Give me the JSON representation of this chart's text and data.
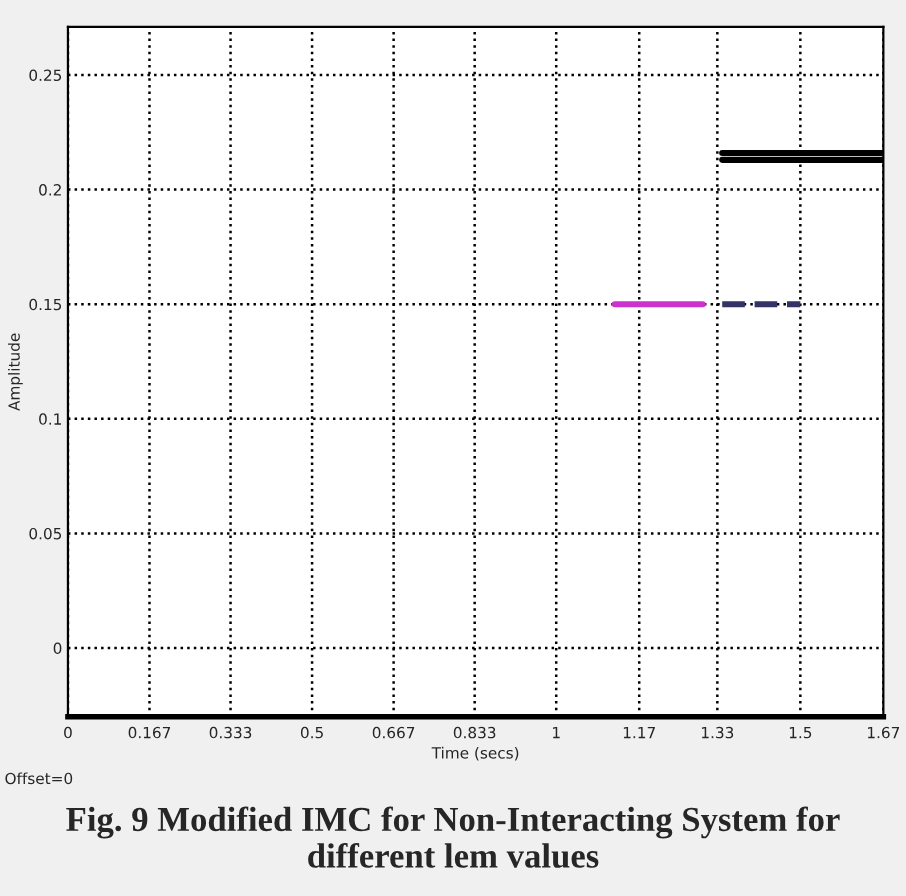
{
  "chart_data": {
    "type": "line",
    "title": "Fig. 9 Modified IMC for Non-Interacting System for different lem values",
    "xlabel": "Time (secs)",
    "ylabel": "Amplitude",
    "annotations": [
      "Offset=0"
    ],
    "series": [
      {
        "color": "#cc33cc",
        "x": [
          1.12,
          1.3
        ],
        "values": [
          0.15,
          0.15
        ]
      },
      {
        "color": "#333366",
        "x": [
          1.34,
          1.5
        ],
        "values": [
          0.15,
          0.15
        ],
        "line_style": "dashed"
      },
      {
        "color": "#000000",
        "x": [
          1.34,
          1.67
        ],
        "values": [
          0.216,
          0.216
        ]
      },
      {
        "color": "#000000",
        "x": [
          1.34,
          1.67
        ],
        "values": [
          0.213,
          0.213
        ]
      }
    ],
    "xlim": [
      0,
      1.67
    ],
    "ylim": [
      -0.03,
      0.271
    ],
    "xticks": [
      0,
      0.167,
      0.333,
      0.5,
      0.667,
      0.833,
      1,
      1.17,
      1.33,
      1.5,
      1.67
    ],
    "yticks": [
      0,
      0.05,
      0.1,
      0.15,
      0.2,
      0.25
    ],
    "grid": true,
    "line_style": "solid"
  }
}
